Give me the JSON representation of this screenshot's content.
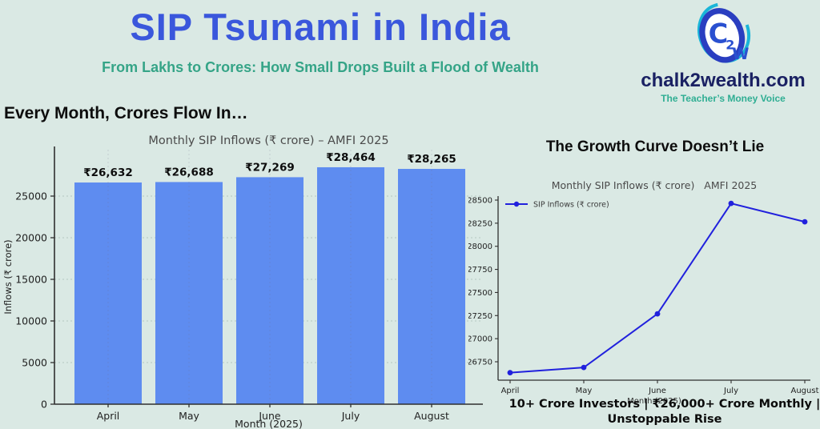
{
  "colors": {
    "background": "#dae9e4",
    "title_blue": "#3a57dc",
    "subtitle_green": "#35a487",
    "brand_navy": "#1a2163",
    "brand_teal": "#2fae93",
    "bar_fill": "#5e8cf0",
    "line_blue": "#2121dd",
    "axis": "#2f2f2f",
    "tick_text": "#1f1f1f",
    "chart_title_gray": "#4a4a4a",
    "logo_cyan": "#1ab5d8",
    "logo_blue": "#2a3ec0"
  },
  "header": {
    "title": "SIP Tsunami in India",
    "subtitle": "From Lakhs to Crores: How Small Drops Built a Flood of Wealth"
  },
  "brand": {
    "site": "chalk2wealth.com",
    "tagline": "The Teacher’s Money Voice",
    "logo": {
      "c": "C",
      "two": "2",
      "w": "W"
    }
  },
  "sections": {
    "left_heading": "Every Month, Crores Flow In…",
    "right_heading": "The Growth Curve Doesn’t Lie",
    "caption": "10+ Crore Investors | ₹26,000+ Crore Monthly | Unstoppable Rise"
  },
  "chart_data": [
    {
      "type": "bar",
      "title": "Monthly SIP Inflows (₹ crore) – AMFI 2025",
      "xlabel": "Month (2025)",
      "ylabel": "Inflows (₹ crore)",
      "categories": [
        "April",
        "May",
        "June",
        "July",
        "August"
      ],
      "values": [
        26632,
        26688,
        27269,
        28464,
        28265
      ],
      "value_labels": [
        "₹26,632",
        "₹26,688",
        "₹27,269",
        "₹28,464",
        "₹28,265"
      ],
      "yticks": [
        0,
        5000,
        10000,
        15000,
        20000,
        25000
      ],
      "ylim": [
        0,
        29500
      ],
      "grid": true,
      "legend_position": "none"
    },
    {
      "type": "line",
      "title": "Monthly SIP Inflows (₹ crore)   AMFI 2025",
      "xlabel": "Month (2025)",
      "ylabel": "",
      "categories": [
        "April",
        "May",
        "June",
        "July",
        "August"
      ],
      "series": [
        {
          "name": "SIP Inflows (₹ crore)",
          "values": [
            26632,
            26688,
            27269,
            28464,
            28265
          ]
        }
      ],
      "yticks": [
        26750,
        27000,
        27250,
        27500,
        27750,
        28000,
        28250,
        28500
      ],
      "ylim": [
        26600,
        28560
      ],
      "grid": false,
      "legend_position": "upper left"
    }
  ]
}
